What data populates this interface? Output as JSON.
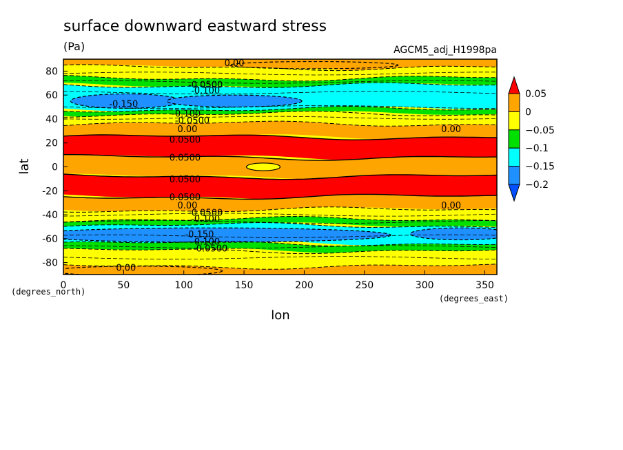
{
  "chart_data": {
    "type": "heatmap",
    "title": "surface downward eastward stress",
    "units": "(Pa)",
    "dataset": "AGCM5_adj_H1998pa",
    "xlabel": "lon",
    "ylabel": "lat",
    "x_units": "(degrees_east)",
    "y_units": "(degrees_north)",
    "xlim": [
      0,
      360
    ],
    "ylim": [
      -90,
      90
    ],
    "x_ticks": [
      "0",
      "50",
      "100",
      "150",
      "200",
      "250",
      "300",
      "350"
    ],
    "y_ticks": [
      "80",
      "60",
      "40",
      "20",
      "0",
      "-20",
      "-40",
      "-60",
      "-80"
    ],
    "colorbar": {
      "labels": [
        "0.05",
        "0",
        "-0.05",
        "-0.1",
        "-0.15",
        "-0.2"
      ],
      "colors": [
        "#ff0000",
        "#ffa500",
        "#ffff00",
        "#00e000",
        "#00ffff",
        "#1e90ff",
        "#0050ff"
      ],
      "levels": [
        0.05,
        0,
        -0.05,
        -0.1,
        -0.15,
        -0.2
      ]
    },
    "zonal_bands": [
      {
        "lat_range": [
          83,
          90
        ],
        "value": 0.02
      },
      {
        "lat_range": [
          74,
          83
        ],
        "value": -0.03
      },
      {
        "lat_range": [
          68,
          74
        ],
        "value": -0.08
      },
      {
        "lat_range": [
          48,
          68
        ],
        "value": -0.13
      },
      {
        "lat_range": [
          44,
          48
        ],
        "value": -0.08
      },
      {
        "lat_range": [
          36,
          44
        ],
        "value": -0.03
      },
      {
        "lat_range": [
          25,
          36
        ],
        "value": 0.02
      },
      {
        "lat_range": [
          8,
          25
        ],
        "value": 0.07
      },
      {
        "lat_range": [
          -8,
          8
        ],
        "value": 0.02
      },
      {
        "lat_range": [
          -25,
          -8
        ],
        "value": 0.07
      },
      {
        "lat_range": [
          -36,
          -25
        ],
        "value": 0.02
      },
      {
        "lat_range": [
          -44,
          -36
        ],
        "value": -0.03
      },
      {
        "lat_range": [
          -49,
          -44
        ],
        "value": -0.08
      },
      {
        "lat_range": [
          -64,
          -49
        ],
        "value": -0.13
      },
      {
        "lat_range": [
          -70,
          -64
        ],
        "value": -0.08
      },
      {
        "lat_range": [
          -83,
          -70
        ],
        "value": -0.03
      },
      {
        "lat_range": [
          -90,
          -83
        ],
        "value": 0.02
      }
    ],
    "contour_labels": [
      {
        "text": "0.00",
        "lon": 142,
        "lat": 87
      },
      {
        "text": "-0.0500",
        "lon": 118,
        "lat": 69
      },
      {
        "text": "-0.100",
        "lon": 118,
        "lat": 64
      },
      {
        "text": "-0.150",
        "lon": 50,
        "lat": 53
      },
      {
        "text": "-0.100",
        "lon": 102,
        "lat": 45
      },
      {
        "text": "-0.0500",
        "lon": 107,
        "lat": 39
      },
      {
        "text": "0.00",
        "lon": 103,
        "lat": 32
      },
      {
        "text": "0.00",
        "lon": 322,
        "lat": 32
      },
      {
        "text": "0.0500",
        "lon": 101,
        "lat": 23
      },
      {
        "text": "0.0500",
        "lon": 101,
        "lat": 8
      },
      {
        "text": "0.0500",
        "lon": 101,
        "lat": -10
      },
      {
        "text": "0.0500",
        "lon": 101,
        "lat": -25
      },
      {
        "text": "0.00",
        "lon": 103,
        "lat": -32
      },
      {
        "text": "0.00",
        "lon": 322,
        "lat": -32
      },
      {
        "text": "-0.0500",
        "lon": 118,
        "lat": -38
      },
      {
        "text": "-0.100",
        "lon": 118,
        "lat": -43
      },
      {
        "text": "-0.150",
        "lon": 113,
        "lat": -56
      },
      {
        "text": "-0.100",
        "lon": 118,
        "lat": -62
      },
      {
        "text": "-0.0500",
        "lon": 122,
        "lat": -68
      },
      {
        "text": "0.00",
        "lon": 52,
        "lat": -84
      }
    ]
  }
}
